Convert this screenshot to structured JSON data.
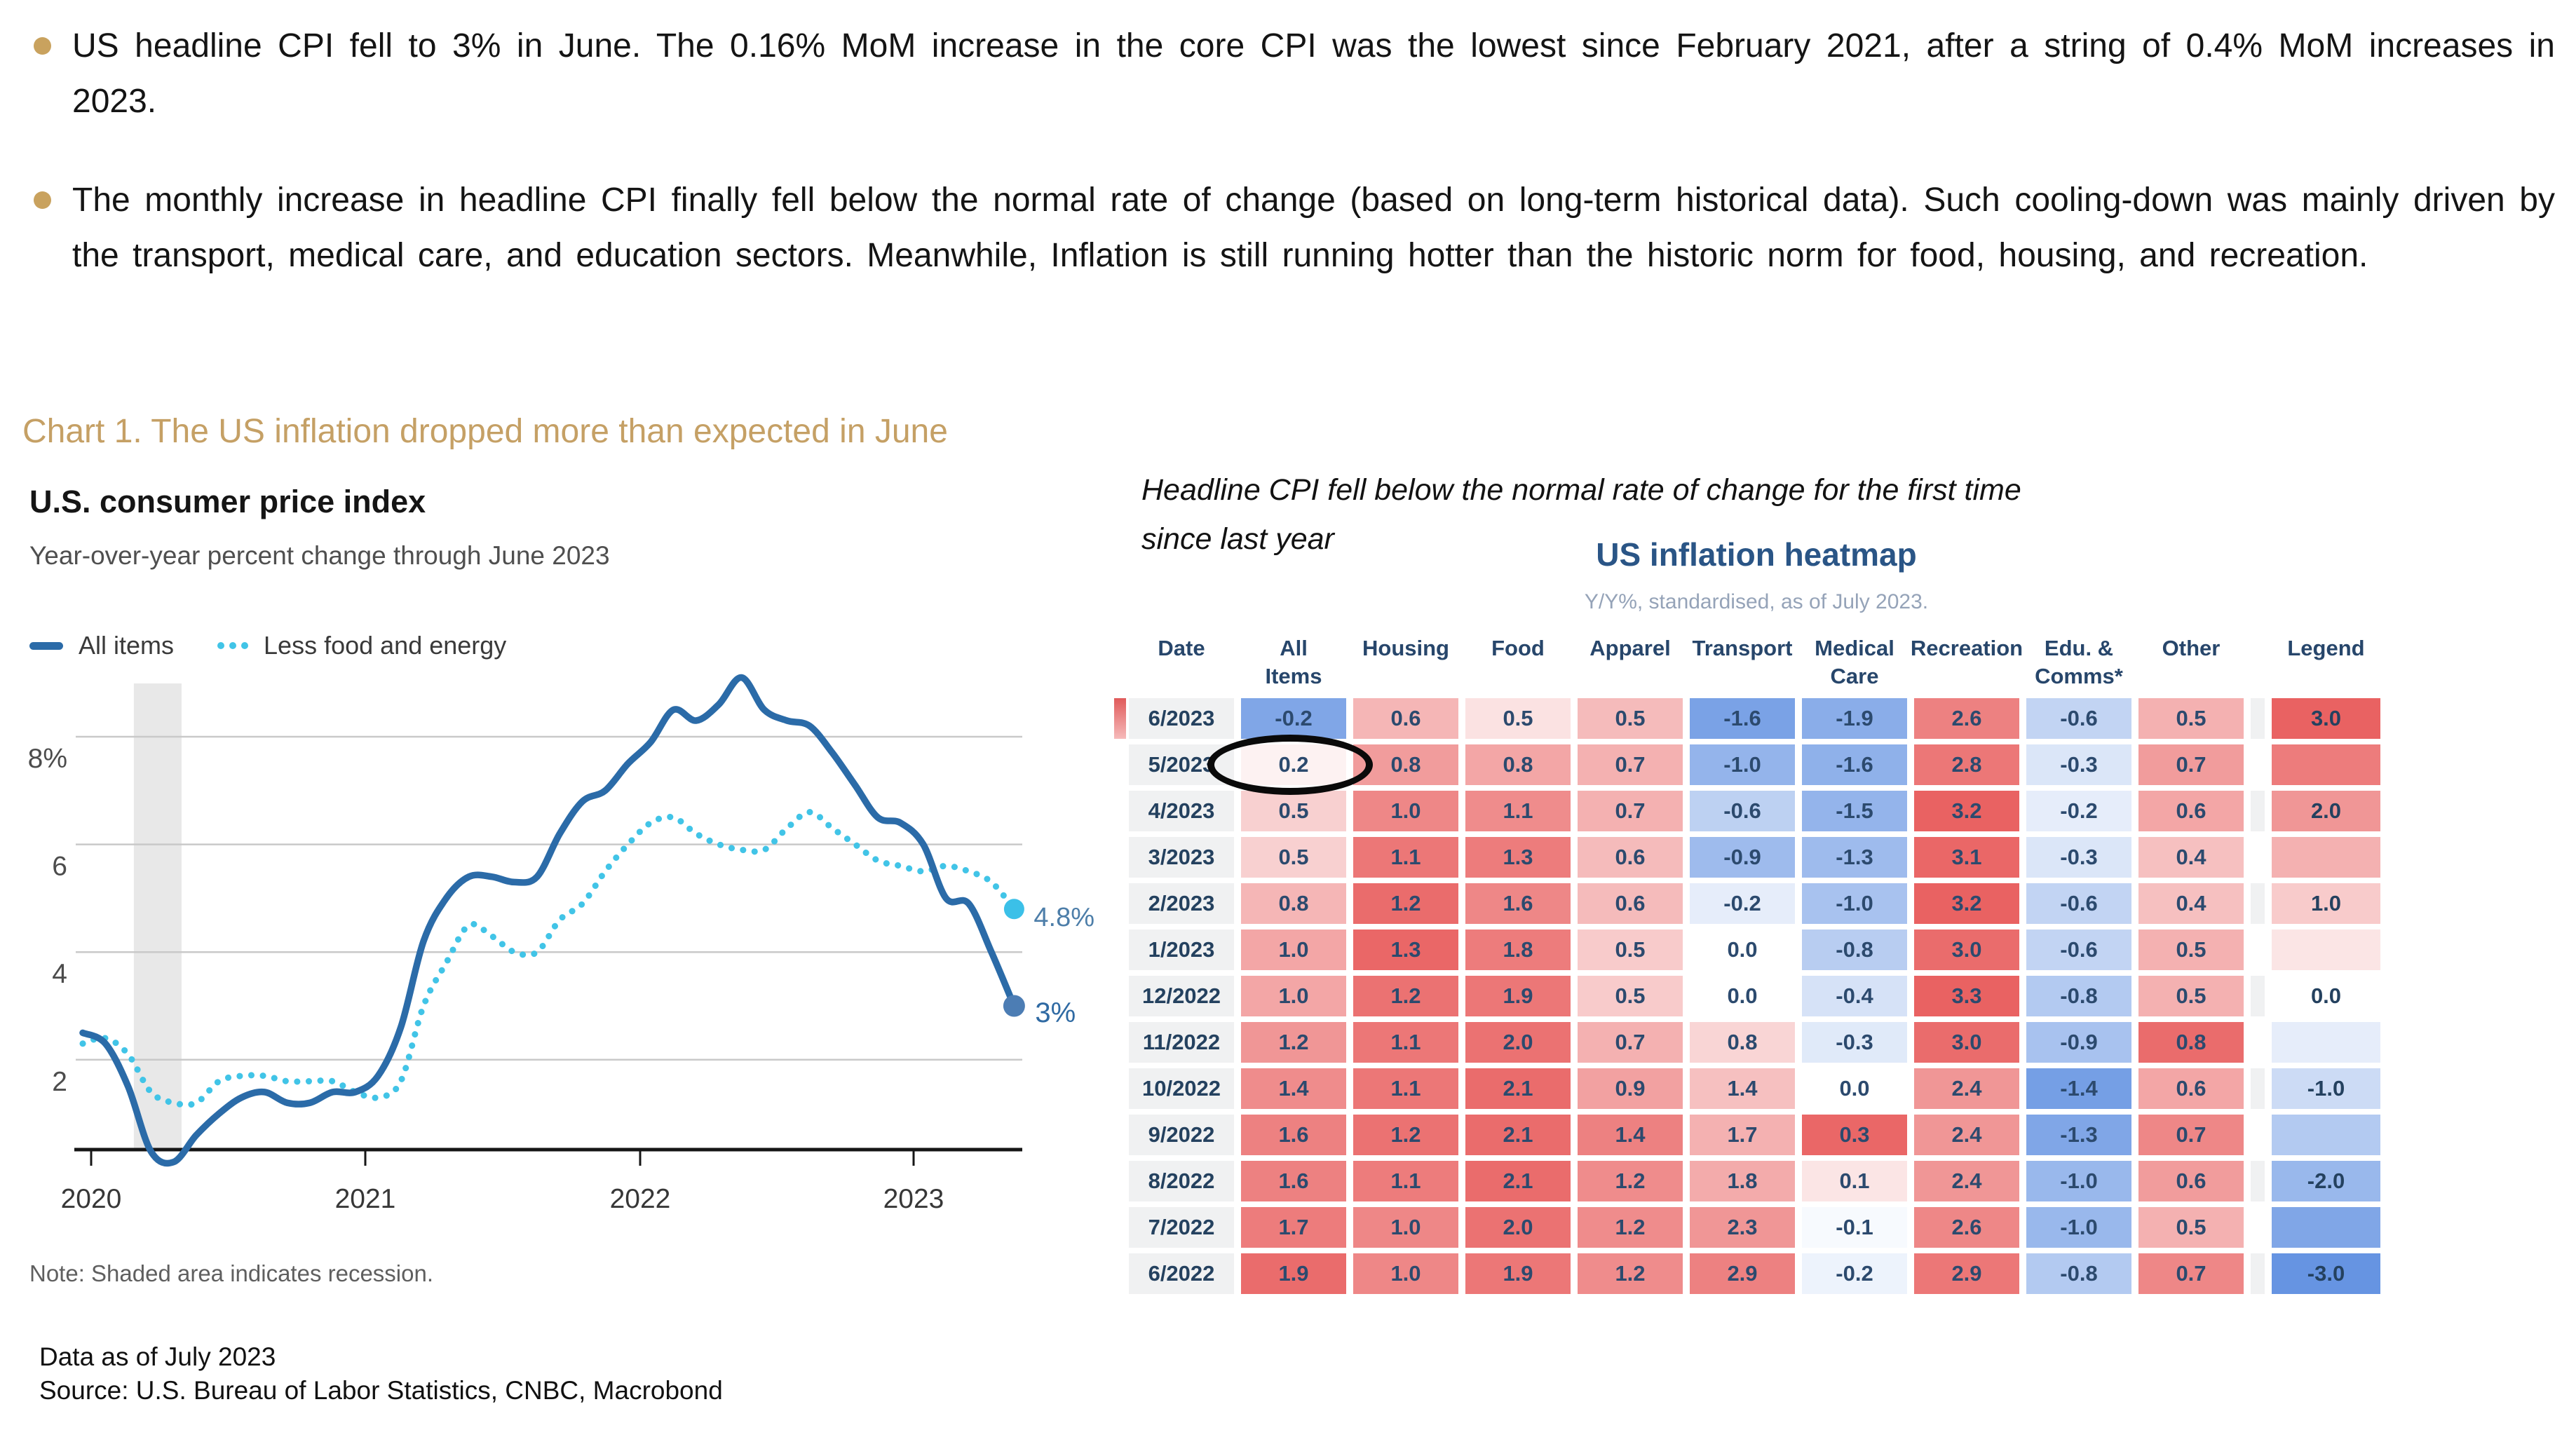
{
  "colors": {
    "accent_tan": "#c5a065",
    "navy_text": "#2c4a6e",
    "heat_red": "#e96262",
    "heat_blue": "#6694e2",
    "line_blue": "#2b6ba8",
    "line_cyan": "#41c4e7",
    "grid_gray": "#c9c9c9",
    "recession_band": "#e8e8e8",
    "date_cell_bg": "#f0f1f2",
    "end_label_cyan_text": "#4d7ea9",
    "end_label_blue_text": "#2f6aa3"
  },
  "bullets": [
    {
      "text": "US headline CPI fell to 3% in June. The 0.16% MoM increase in the core CPI was the lowest since February 2021, after a string of 0.4% MoM increases in 2023."
    },
    {
      "text": "The monthly increase in headline CPI finally fell below the normal rate of change (based on long-term historical data). Such cooling-down was mainly driven by the transport, medical care, and education sectors. Meanwhile, Inflation is still running hotter than the historic norm for food, housing, and recreation."
    }
  ],
  "section_title": "Chart 1. The US inflation dropped more than expected in June",
  "annotation": {
    "line1": "Headline CPI fell below the normal rate of change for the first time",
    "line2": "since last year"
  },
  "line_chart_ui": {
    "title": "U.S. consumer price index",
    "subtitle": "Year-over-year percent change through June 2023",
    "legend": [
      {
        "label": "All items",
        "style": "solid-dash"
      },
      {
        "label": "Less food and energy",
        "style": "dotted"
      }
    ],
    "note": "Note: Shaded area indicates recession."
  },
  "footer": {
    "line1": "Data as of July 2023",
    "line2": "Source: U.S. Bureau of Labor Statistics, CNBC, Macrobond"
  },
  "chart_data": [
    {
      "type": "line",
      "title": "U.S. consumer price index",
      "subtitle": "Year-over-year percent change through June 2023",
      "xlabel": "",
      "ylabel": "Year-over-year percent change",
      "ylim": [
        0,
        9.6
      ],
      "grid": true,
      "legend_position": "top-left",
      "y_ticks": [
        {
          "v": 8,
          "label": "8%"
        },
        {
          "v": 6,
          "label": "6"
        },
        {
          "v": 4,
          "label": "4"
        },
        {
          "v": 2,
          "label": "2"
        }
      ],
      "x_tick_labels": [
        "2020",
        "2021",
        "2022",
        "2023"
      ],
      "recession_band": {
        "start_month_index": 2.25,
        "end_month_index": 4.35
      },
      "months": [
        "2020-01",
        "2020-02",
        "2020-03",
        "2020-04",
        "2020-05",
        "2020-06",
        "2020-07",
        "2020-08",
        "2020-09",
        "2020-10",
        "2020-11",
        "2020-12",
        "2021-01",
        "2021-02",
        "2021-03",
        "2021-04",
        "2021-05",
        "2021-06",
        "2021-07",
        "2021-08",
        "2021-09",
        "2021-10",
        "2021-11",
        "2021-12",
        "2022-01",
        "2022-02",
        "2022-03",
        "2022-04",
        "2022-05",
        "2022-06",
        "2022-07",
        "2022-08",
        "2022-09",
        "2022-10",
        "2022-11",
        "2022-12",
        "2023-01",
        "2023-02",
        "2023-03",
        "2023-04",
        "2023-05",
        "2023-06"
      ],
      "series": [
        {
          "name": "All items",
          "style": "solid",
          "end_label": "3%",
          "end_value": 3.0,
          "values": [
            2.5,
            2.3,
            1.5,
            0.3,
            0.1,
            0.6,
            1.0,
            1.3,
            1.4,
            1.2,
            1.2,
            1.4,
            1.4,
            1.7,
            2.6,
            4.2,
            5.0,
            5.4,
            5.4,
            5.3,
            5.4,
            6.2,
            6.8,
            7.0,
            7.5,
            7.9,
            8.5,
            8.3,
            8.6,
            9.1,
            8.5,
            8.3,
            8.2,
            7.7,
            7.1,
            6.5,
            6.4,
            6.0,
            5.0,
            4.9,
            4.0,
            3.0
          ]
        },
        {
          "name": "Less food and energy",
          "style": "dotted",
          "end_label": "4.8%",
          "end_value": 4.8,
          "values": [
            2.3,
            2.4,
            2.1,
            1.4,
            1.2,
            1.2,
            1.6,
            1.7,
            1.7,
            1.6,
            1.6,
            1.6,
            1.4,
            1.3,
            1.6,
            3.0,
            3.8,
            4.5,
            4.3,
            4.0,
            4.0,
            4.6,
            4.9,
            5.5,
            6.0,
            6.4,
            6.5,
            6.2,
            6.0,
            5.9,
            5.9,
            6.3,
            6.6,
            6.3,
            6.0,
            5.7,
            5.6,
            5.5,
            5.6,
            5.5,
            5.3,
            4.8
          ]
        }
      ]
    },
    {
      "type": "heatmap",
      "title": "US inflation heatmap",
      "subtitle": "Y/Y%, standardised, as of July 2023.",
      "color_scale": {
        "max_label": "3.0",
        "min_label": "-3.0",
        "max_color": "#e96262",
        "min_color": "#6694e2",
        "mid_color": "#ffffff"
      },
      "columns": [
        [
          "Date"
        ],
        [
          "All",
          "Items"
        ],
        [
          "Housing"
        ],
        [
          "Food"
        ],
        [
          "Apparel"
        ],
        [
          "Transport"
        ],
        [
          "Medical",
          "Care"
        ],
        [
          "Recreation"
        ],
        [
          "Edu. &",
          "Comms*"
        ],
        [
          "Other"
        ],
        [
          "Legend"
        ]
      ],
      "rows": [
        {
          "date": "6/2023",
          "values": [
            "-0.2",
            "0.6",
            "0.5",
            "0.5",
            "-1.6",
            "-1.9",
            "2.6",
            "-0.6",
            "0.5"
          ],
          "tones": [
            -2.5,
            1.4,
            0.55,
            1.3,
            -2.6,
            -2.3,
            2.4,
            -1.2,
            1.5
          ],
          "legend": {
            "label": "3.0",
            "tone": 3
          },
          "marked": true
        },
        {
          "date": "5/2023",
          "values": [
            "0.2",
            "0.8",
            "0.8",
            "0.7",
            "-1.0",
            "-1.6",
            "2.8",
            "-0.3",
            "0.7"
          ],
          "tones": [
            0.25,
            1.9,
            1.7,
            1.5,
            -2.1,
            -2.2,
            2.6,
            -0.7,
            1.9
          ],
          "legend": {
            "label": "",
            "tone": 2.5
          },
          "circled_cell": 0
        },
        {
          "date": "4/2023",
          "values": [
            "0.5",
            "1.0",
            "1.1",
            "0.7",
            "-0.6",
            "-1.5",
            "3.2",
            "-0.2",
            "0.6"
          ],
          "tones": [
            0.9,
            2.3,
            2.2,
            1.5,
            -1.3,
            -2.1,
            3.0,
            -0.5,
            1.7
          ],
          "legend": {
            "label": "2.0",
            "tone": 2
          }
        },
        {
          "date": "3/2023",
          "values": [
            "0.5",
            "1.1",
            "1.3",
            "0.6",
            "-0.9",
            "-1.3",
            "3.1",
            "-0.3",
            "0.4"
          ],
          "tones": [
            0.9,
            2.6,
            2.5,
            1.3,
            -1.9,
            -1.9,
            2.9,
            -0.7,
            1.2
          ],
          "legend": {
            "label": "",
            "tone": 1.5
          }
        },
        {
          "date": "2/2023",
          "values": [
            "0.8",
            "1.2",
            "1.6",
            "0.6",
            "-0.2",
            "-1.0",
            "3.2",
            "-0.6",
            "0.4"
          ],
          "tones": [
            1.4,
            2.8,
            2.3,
            1.3,
            -0.5,
            -1.7,
            3.0,
            -1.2,
            1.2
          ],
          "legend": {
            "label": "1.0",
            "tone": 1
          }
        },
        {
          "date": "1/2023",
          "values": [
            "1.0",
            "1.3",
            "1.8",
            "0.5",
            "0.0",
            "-0.8",
            "3.0",
            "-0.6",
            "0.5"
          ],
          "tones": [
            1.7,
            2.9,
            2.5,
            1.0,
            0.0,
            -1.4,
            2.8,
            -1.2,
            1.5
          ],
          "legend": {
            "label": "",
            "tone": 0.5
          }
        },
        {
          "date": "12/2022",
          "values": [
            "1.0",
            "1.2",
            "1.9",
            "0.5",
            "0.0",
            "-0.4",
            "3.3",
            "-0.8",
            "0.5"
          ],
          "tones": [
            1.7,
            2.7,
            2.6,
            1.0,
            0.0,
            -0.8,
            3.0,
            -1.5,
            1.5
          ],
          "legend": {
            "label": "0.0",
            "tone": 0
          }
        },
        {
          "date": "11/2022",
          "values": [
            "1.2",
            "1.1",
            "2.0",
            "0.7",
            "0.8",
            "-0.3",
            "3.0",
            "-0.9",
            "0.8"
          ],
          "tones": [
            2.0,
            2.6,
            2.7,
            1.5,
            0.8,
            -0.6,
            2.8,
            -1.7,
            2.8
          ],
          "legend": {
            "label": "",
            "tone": -0.5
          }
        },
        {
          "date": "10/2022",
          "values": [
            "1.4",
            "1.1",
            "2.1",
            "0.9",
            "1.4",
            "0.0",
            "2.4",
            "-1.4",
            "0.6"
          ],
          "tones": [
            2.2,
            2.6,
            2.8,
            1.8,
            1.2,
            0.0,
            2.0,
            -2.7,
            1.7
          ],
          "legend": {
            "label": "-1.0",
            "tone": -1
          }
        },
        {
          "date": "9/2022",
          "values": [
            "1.6",
            "1.2",
            "2.1",
            "1.4",
            "1.7",
            "0.3",
            "2.4",
            "-1.3",
            "0.7"
          ],
          "tones": [
            2.4,
            2.7,
            2.8,
            2.4,
            1.5,
            2.9,
            2.0,
            -2.5,
            2.3
          ],
          "legend": {
            "label": "",
            "tone": -1.5
          }
        },
        {
          "date": "8/2022",
          "values": [
            "1.6",
            "1.1",
            "2.1",
            "1.2",
            "1.8",
            "0.1",
            "2.4",
            "-1.0",
            "0.6"
          ],
          "tones": [
            2.4,
            2.5,
            2.8,
            2.2,
            1.6,
            0.5,
            2.0,
            -2.0,
            1.9
          ],
          "legend": {
            "label": "-2.0",
            "tone": -2
          }
        },
        {
          "date": "7/2022",
          "values": [
            "1.7",
            "1.0",
            "2.0",
            "1.2",
            "2.3",
            "-0.1",
            "2.6",
            "-1.0",
            "0.5"
          ],
          "tones": [
            2.5,
            2.3,
            2.7,
            2.2,
            2.0,
            -0.15,
            2.3,
            -2.0,
            1.5
          ],
          "legend": {
            "label": "",
            "tone": -2.5
          }
        },
        {
          "date": "6/2022",
          "values": [
            "1.9",
            "1.0",
            "1.9",
            "1.2",
            "2.9",
            "-0.2",
            "2.9",
            "-0.8",
            "0.7"
          ],
          "tones": [
            2.8,
            2.3,
            2.6,
            2.2,
            2.4,
            -0.35,
            2.6,
            -1.5,
            2.3
          ],
          "legend": {
            "label": "-3.0",
            "tone": -3
          }
        }
      ]
    }
  ]
}
